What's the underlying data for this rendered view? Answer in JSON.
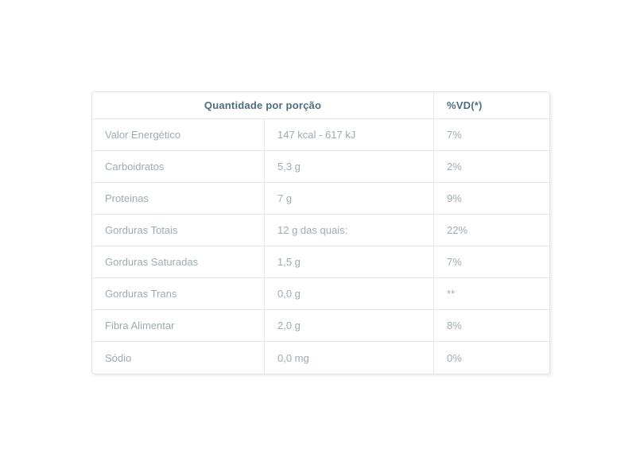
{
  "colors": {
    "page_bg": "#ffffff",
    "header_text": "#4d6e7e",
    "body_text": "#9daab1",
    "border_outer": "#dde2e5",
    "border_inner": "#e4e7e9"
  },
  "table": {
    "header": {
      "quantity_label": "Quantidade por porção",
      "dv_label": "%VD(*)"
    },
    "rows": [
      {
        "nutrient": "Valor Energético",
        "amount": "147 kcal - 617 kJ",
        "dv": "7%"
      },
      {
        "nutrient": "Carboidratos",
        "amount": "5,3 g",
        "dv": "2%"
      },
      {
        "nutrient": "Proteinas",
        "amount": "7 g",
        "dv": "9%"
      },
      {
        "nutrient": "Gorduras Totais",
        "amount": "12 g das quais:",
        "dv": "22%"
      },
      {
        "nutrient": "Gorduras Saturadas",
        "amount": "1,5 g",
        "dv": "7%"
      },
      {
        "nutrient": "Gorduras Trans",
        "amount": "0,0 g",
        "dv": "**"
      },
      {
        "nutrient": "Fibra Alimentar",
        "amount": "2,0 g",
        "dv": "8%"
      },
      {
        "nutrient": "Sódio",
        "amount": "0,0 mg",
        "dv": "0%"
      }
    ]
  }
}
